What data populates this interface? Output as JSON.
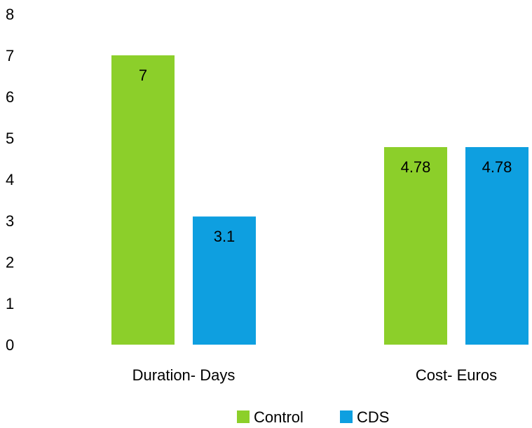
{
  "chart_data": {
    "type": "bar",
    "title": "",
    "xlabel": "",
    "ylabel": "",
    "categories": [
      "Duration- Days",
      "Cost- Euros"
    ],
    "series": [
      {
        "name": "Control",
        "values": [
          7,
          4.78
        ],
        "labels": [
          "7",
          "4.78"
        ],
        "color": "#8CCF2A"
      },
      {
        "name": "CDS",
        "values": [
          3.1,
          4.78
        ],
        "labels": [
          "3.1",
          "4.78"
        ],
        "color": "#0E9FE0"
      }
    ],
    "ylim": [
      0,
      8
    ],
    "yticks": [
      "0",
      "1",
      "2",
      "3",
      "4",
      "5",
      "6",
      "7",
      "8"
    ],
    "grid": false,
    "legend": "bottom"
  }
}
